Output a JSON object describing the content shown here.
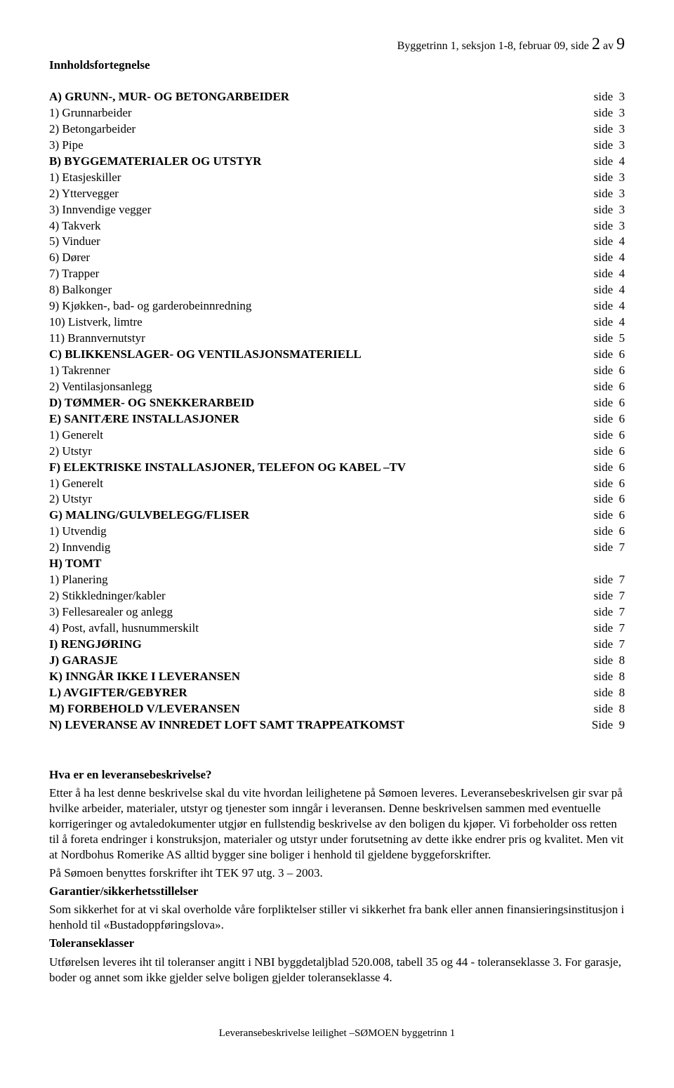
{
  "header": {
    "prefix": "Byggetrinn 1, seksjon 1-8, februar 09, side ",
    "currentPage": "2",
    "middle": " av ",
    "totalPages": "9"
  },
  "title": "Innholdsfortegnelse",
  "toc": [
    {
      "label": "A) GRUNN-, MUR- OG BETONGARBEIDER",
      "bold": true,
      "pageWord": "side",
      "page": "3"
    },
    {
      "label": "1) Grunnarbeider",
      "bold": false,
      "pageWord": "side",
      "page": "3"
    },
    {
      "label": "2) Betongarbeider",
      "bold": false,
      "pageWord": "side",
      "page": "3"
    },
    {
      "label": "3) Pipe",
      "bold": false,
      "pageWord": "side",
      "page": "3"
    },
    {
      "label": "B) BYGGEMATERIALER OG UTSTYR",
      "bold": true,
      "pageWord": "side",
      "page": "4"
    },
    {
      "label": "1) Etasjeskiller",
      "bold": false,
      "pageWord": "side",
      "page": "3"
    },
    {
      "label": "2) Yttervegger",
      "bold": false,
      "pageWord": "side",
      "page": "3"
    },
    {
      "label": "3) Innvendige vegger",
      "bold": false,
      "pageWord": "side",
      "page": "3"
    },
    {
      "label": "4) Takverk",
      "bold": false,
      "pageWord": "side",
      "page": "3"
    },
    {
      "label": "5) Vinduer",
      "bold": false,
      "pageWord": "side",
      "page": "4"
    },
    {
      "label": "6) Dører",
      "bold": false,
      "pageWord": "side",
      "page": "4"
    },
    {
      "label": "7) Trapper",
      "bold": false,
      "pageWord": "side",
      "page": "4"
    },
    {
      "label": "8) Balkonger",
      "bold": false,
      "pageWord": "side",
      "page": "4"
    },
    {
      "label": "9) Kjøkken-, bad- og garderobeinnredning",
      "bold": false,
      "pageWord": "side",
      "page": "4"
    },
    {
      "label": "10) Listverk, limtre",
      "bold": false,
      "pageWord": "side",
      "page": "4"
    },
    {
      "label": "11) Brannvernutstyr",
      "bold": false,
      "pageWord": "side",
      "page": "5"
    },
    {
      "label": "C) BLIKKENSLAGER- OG VENTILASJONSMATERIELL",
      "bold": true,
      "pageWord": "side",
      "page": "6"
    },
    {
      "label": "1) Takrenner",
      "bold": false,
      "pageWord": "side",
      "page": "6"
    },
    {
      "label": "2) Ventilasjonsanlegg",
      "bold": false,
      "pageWord": "side",
      "page": "6"
    },
    {
      "label": "D) TØMMER- OG SNEKKERARBEID",
      "bold": true,
      "pageWord": "side",
      "page": "6"
    },
    {
      "label": "E) SANITÆRE INSTALLASJONER",
      "bold": true,
      "pageWord": "side",
      "page": "6"
    },
    {
      "label": "1) Generelt",
      "bold": false,
      "pageWord": "side",
      "page": "6"
    },
    {
      "label": "2) Utstyr",
      "bold": false,
      "pageWord": "side",
      "page": "6"
    },
    {
      "label": "F) ELEKTRISKE INSTALLASJONER, TELEFON OG KABEL –TV",
      "bold": true,
      "pageWord": "side",
      "page": "6"
    },
    {
      "label": "1) Generelt",
      "bold": false,
      "pageWord": "side",
      "page": "6"
    },
    {
      "label": "2) Utstyr",
      "bold": false,
      "pageWord": "side",
      "page": "6"
    },
    {
      "label": "G) MALING/GULVBELEGG/FLISER",
      "bold": true,
      "pageWord": "side",
      "page": "6"
    },
    {
      "label": "1) Utvendig",
      "bold": false,
      "pageWord": "side",
      "page": "6"
    },
    {
      "label": "2) Innvendig",
      "bold": false,
      "pageWord": "side",
      "page": "7"
    },
    {
      "label": "H) TOMT",
      "bold": true,
      "pageWord": "",
      "page": ""
    },
    {
      "label": "1) Planering",
      "bold": false,
      "pageWord": "side",
      "page": "7"
    },
    {
      "label": "2) Stikkledninger/kabler",
      "bold": false,
      "pageWord": "side",
      "page": "7"
    },
    {
      "label": "3) Fellesarealer og anlegg",
      "bold": false,
      "pageWord": "side",
      "page": "7"
    },
    {
      "label": "4) Post, avfall, husnummerskilt",
      "bold": false,
      "pageWord": "side",
      "page": "7"
    },
    {
      "label": "I) RENGJØRING",
      "bold": true,
      "pageWord": "side",
      "page": "7"
    },
    {
      "label": "J) GARASJE",
      "bold": true,
      "pageWord": "side",
      "page": "8"
    },
    {
      "label": "K) INNGÅR IKKE I LEVERANSEN",
      "bold": true,
      "pageWord": "side",
      "page": "8"
    },
    {
      "label": "L) AVGIFTER/GEBYRER",
      "bold": true,
      "pageWord": "side",
      "page": "8"
    },
    {
      "label": "M) FORBEHOLD V/LEVERANSEN",
      "bold": true,
      "pageWord": "side",
      "page": "8"
    },
    {
      "label": "N) LEVERANSE AV INNREDET LOFT SAMT TRAPPEATKOMST",
      "bold": true,
      "pageWord": "Side",
      "page": "9"
    }
  ],
  "body": {
    "q1_head": "Hva er en leveransebeskrivelse?",
    "q1_text": "Etter å ha lest denne beskrivelse skal du vite hvordan leilighetene på Sømoen leveres. Leveransebeskrivelsen gir svar på hvilke arbeider, materialer, utstyr og tjenester som inngår i leveransen. Denne beskrivelsen sammen med eventuelle korrigeringer og avtaledokumenter utgjør en fullstendig beskrivelse av den boligen du kjøper. Vi forbeholder oss retten til å foreta endringer i konstruksjon, materialer og utstyr under forutsetning av dette ikke endrer pris og kvalitet. Men vit at Nordbohus Romerike AS alltid bygger sine boliger i henhold til gjeldene byggeforskrifter.",
    "q1_text2": "På Sømoen benyttes forskrifter iht TEK 97 utg. 3 – 2003.",
    "q2_head": "Garantier/sikkerhetsstillelser",
    "q2_text": "Som sikkerhet for at vi skal overholde våre forpliktelser stiller vi sikkerhet fra bank eller annen finansieringsinstitusjon i henhold til «Bustadoppføringslova».",
    "q3_head": "Toleranseklasser",
    "q3_text": "Utførelsen leveres iht til toleranser angitt i NBI byggdetaljblad 520.008, tabell 35 og 44 - toleranseklasse 3. For garasje, boder og annet som ikke gjelder selve boligen gjelder toleranseklasse 4."
  },
  "footer": "Leveransebeskrivelse leilighet –SØMOEN byggetrinn 1"
}
